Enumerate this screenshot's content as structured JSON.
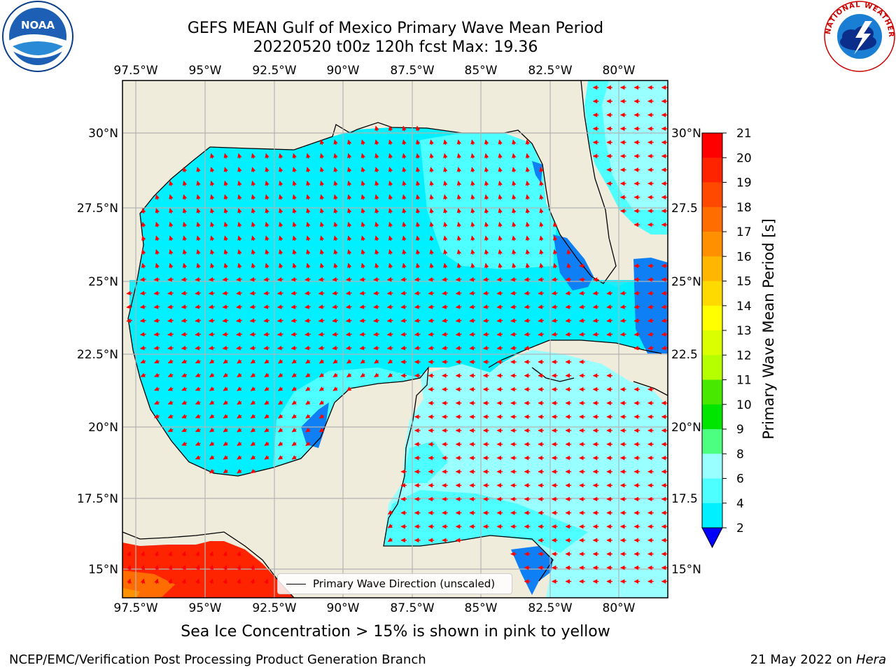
{
  "header": {
    "title_line1": "GEFS MEAN Gulf of Mexico Primary Wave Mean Period",
    "title_line2": "20220520 t00z 120h fcst   Max: 19.36"
  },
  "logos": {
    "noaa": {
      "text": "NOAA",
      "icon": "noaa-logo"
    },
    "nws": {
      "text": "NATIONAL WEATHER SERVICE",
      "icon": "nws-logo"
    }
  },
  "map": {
    "lon_ticks_top": [
      "97.5°W",
      "95°W",
      "92.5°W",
      "90°W",
      "87.5°W",
      "85°W",
      "82.5°W",
      "80°W"
    ],
    "lon_ticks_bottom": [
      "97.5°W",
      "95°W",
      "92.5°W",
      "90°W",
      "87.5°W",
      "85°W",
      "82.5°W",
      "80°W"
    ],
    "lat_ticks_left": [
      "30°N",
      "27.5°N",
      "25°N",
      "22.5°N",
      "20°N",
      "17.5°N",
      "15°N"
    ],
    "lat_ticks_right": [
      "30°N",
      "27.5",
      "25°N",
      "22.5",
      "20°N",
      "17.5",
      "15°N"
    ],
    "land_color": "#efecdc",
    "legend_label": "Primary Wave Direction (unscaled)"
  },
  "colorbar": {
    "label": "Primary Wave Mean Period [s]",
    "tick_labels": [
      "21",
      "20",
      "19",
      "18",
      "17",
      "16",
      "15",
      "14",
      "13",
      "12",
      "11",
      "10",
      "9",
      "8",
      "6",
      "4",
      "2"
    ],
    "colors": [
      "#ff0000",
      "#ff2400",
      "#ff4800",
      "#ff6d00",
      "#ff9100",
      "#ffb600",
      "#ffda00",
      "#ffff00",
      "#daff00",
      "#b6ff00",
      "#48e800",
      "#00e600",
      "#4dff80",
      "#99ffff",
      "#4dffff",
      "#00f0ff",
      "#0080ff"
    ],
    "extend_color": "#0000ff"
  },
  "footer": {
    "subtitle": "Sea Ice Concentration > 15% is shown in pink to yellow",
    "left": "NCEP/EMC/Verification Post Processing Product Generation Branch",
    "right_date": "21 May 2022 on ",
    "right_host": "Hera"
  }
}
